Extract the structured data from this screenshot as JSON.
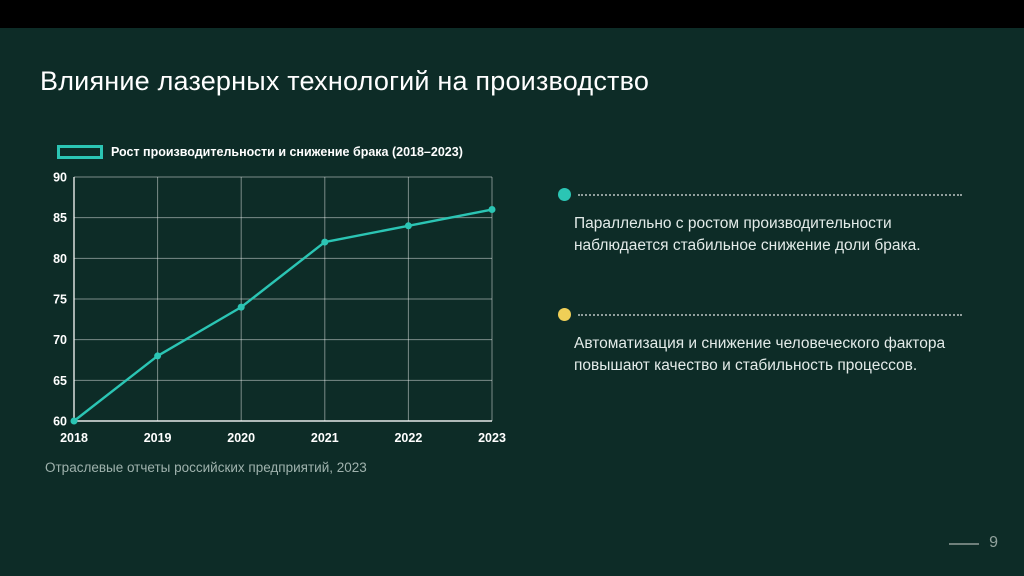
{
  "slide": {
    "title": "Влияние лазерных технологий на производство",
    "source_caption": "Отраслевые отчеты российских предприятий, 2023",
    "page_number": "9",
    "colors": {
      "background": "#0d2c27",
      "accent_teal": "#2bc5b4",
      "accent_yellow": "#efcf57",
      "text": "#ffffff",
      "muted": "#9fb2ad"
    }
  },
  "chart_data": {
    "type": "line",
    "title": "Рост производительности и снижение брака (2018–2023)",
    "x": [
      2018,
      2019,
      2020,
      2021,
      2022,
      2023
    ],
    "values": [
      60,
      68,
      74,
      82,
      84,
      86
    ],
    "ylim": [
      60,
      90
    ],
    "ytick_step": 5,
    "grid": true,
    "legend_position": "top-left",
    "series_color": "#2bc5b4",
    "xlabel": "",
    "ylabel": ""
  },
  "bullets": [
    {
      "color": "#2bc5b4",
      "text": "Параллельно с ростом производительности наблюдается стабильное снижение доли брака."
    },
    {
      "color": "#efcf57",
      "text": "Автоматизация и снижение человеческого фактора повышают качество и стабильность процессов."
    }
  ]
}
